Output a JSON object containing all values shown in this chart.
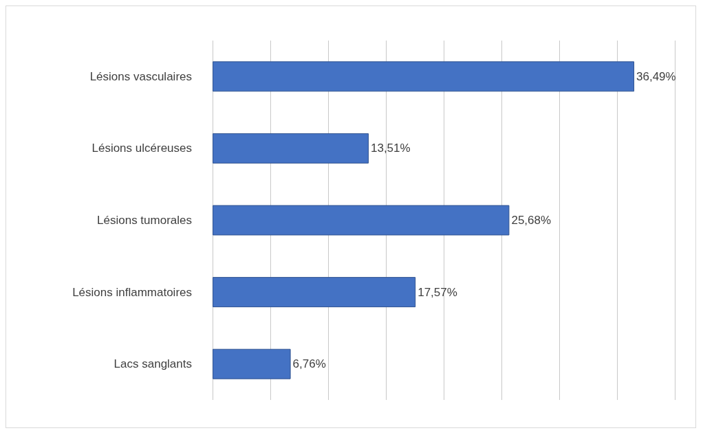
{
  "chart_data": {
    "type": "bar",
    "orientation": "horizontal",
    "categories": [
      "Lésions vasculaires",
      "Lésions ulcéreuses",
      "Lésions tumorales",
      "Lésions inflammatoires",
      "Lacs sanglants"
    ],
    "values": [
      36.49,
      13.51,
      25.68,
      17.57,
      6.76
    ],
    "value_labels": [
      "36,49%",
      "13,51%",
      "25,68%",
      "17,57%",
      "6,76%"
    ],
    "color": "#4472c4",
    "xlim": [
      0,
      40
    ],
    "xticks": [
      {
        "value": 0,
        "label": null
      },
      {
        "value": 5,
        "label": null
      },
      {
        "value": 10,
        "label": null
      },
      {
        "value": 15,
        "label": null
      },
      {
        "value": 20,
        "label": null
      },
      {
        "value": 25,
        "label": null
      },
      {
        "value": 30,
        "label": null
      },
      {
        "value": 35,
        "label": null
      },
      {
        "value": 40,
        "label": null
      }
    ],
    "grid": "x",
    "tick_labels": "y"
  }
}
